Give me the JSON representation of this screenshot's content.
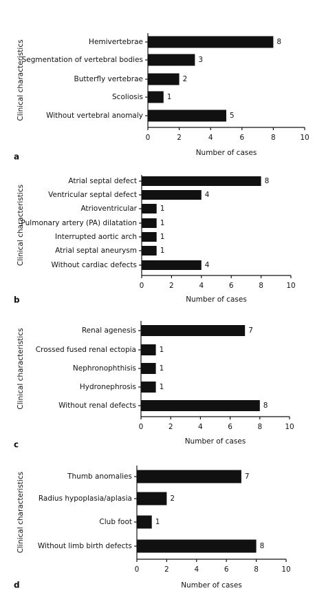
{
  "chart_data": [
    {
      "type": "bar",
      "label": "a",
      "ylabel": "Clinical characteristics",
      "xlabel": "Number of cases",
      "color": "#111111",
      "categories": [
        "Hemivertebrae",
        "Segmentation of vertebral bodies",
        "Butterfly vertebrae",
        "Scoliosis",
        "Without vertebral anomaly"
      ],
      "values": [
        8,
        3,
        2,
        1,
        5
      ],
      "xlim": [
        0,
        10
      ],
      "xticks": [
        0,
        2,
        4,
        6,
        8,
        10
      ]
    },
    {
      "type": "bar",
      "label": "b",
      "ylabel": "Clinical characteristics",
      "xlabel": "Number of cases",
      "color": "#111111",
      "categories": [
        "Atrial septal defect",
        "Ventricular septal defect",
        "Atrioventricular",
        "Pulmonary artery (PA) dilatation",
        "Interrupted aortic arch",
        "Atrial septal aneurysm",
        "Without cardiac defects"
      ],
      "values": [
        8,
        4,
        1,
        1,
        1,
        1,
        4
      ],
      "xlim": [
        0,
        10
      ],
      "xticks": [
        0,
        2,
        4,
        6,
        8,
        10
      ]
    },
    {
      "type": "bar",
      "label": "c",
      "ylabel": "Clinical characteristics",
      "xlabel": "Number of cases",
      "color": "#111111",
      "categories": [
        "Renal agenesis",
        "Crossed fused renal ectopia",
        "Nephronophthisis",
        "Hydronephrosis",
        "Without renal defects"
      ],
      "values": [
        7,
        1,
        1,
        1,
        8
      ],
      "xlim": [
        0,
        10
      ],
      "xticks": [
        0,
        2,
        4,
        6,
        8,
        10
      ]
    },
    {
      "type": "bar",
      "label": "d",
      "ylabel": "Clinical characteristics",
      "xlabel": "Number of cases",
      "color": "#111111",
      "categories": [
        "Thumb anomalies",
        "Radius hypoplasia/aplasia",
        "Club foot",
        "Without limb birth defects"
      ],
      "values": [
        7,
        2,
        1,
        8
      ],
      "xlim": [
        0,
        10
      ],
      "xticks": [
        0,
        2,
        4,
        6,
        8,
        10
      ]
    }
  ]
}
